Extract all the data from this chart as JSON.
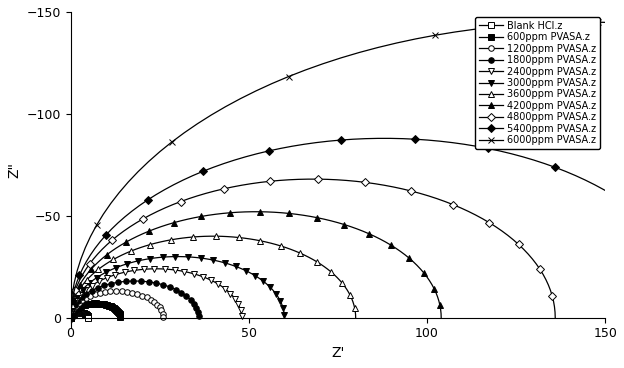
{
  "title": "",
  "xlabel": "Z'",
  "ylabel": "Z\"",
  "xlim": [
    0,
    150
  ],
  "ylim": [
    -150,
    5
  ],
  "yticks": [
    -150,
    -100,
    -50,
    0
  ],
  "xticks": [
    0,
    50,
    100,
    150
  ],
  "series": [
    {
      "label": "Blank HCl.z",
      "R": 2.5,
      "x0": 2.5,
      "marker": "s",
      "filled": false,
      "markersize": 4,
      "markevery": 2
    },
    {
      "label": "600ppm PVASA.z",
      "R": 7.0,
      "x0": 7.0,
      "marker": "s",
      "filled": true,
      "markersize": 4,
      "markevery": 2
    },
    {
      "label": "1200ppm PVASA.z",
      "R": 13.0,
      "x0": 13.0,
      "marker": "o",
      "filled": false,
      "markersize": 4,
      "markevery": 3
    },
    {
      "label": "1800ppm PVASA.z",
      "R": 18.0,
      "x0": 18.0,
      "marker": "o",
      "filled": true,
      "markersize": 4,
      "markevery": 3
    },
    {
      "label": "2400ppm PVASA.z",
      "R": 24.0,
      "x0": 24.0,
      "marker": "v",
      "filled": false,
      "markersize": 5,
      "markevery": 3
    },
    {
      "label": "3000ppm PVASA.z",
      "R": 30.0,
      "x0": 30.0,
      "marker": "v",
      "filled": true,
      "markersize": 5,
      "markevery": 3
    },
    {
      "label": "3600ppm PVASA.z",
      "R": 40.0,
      "x0": 40.0,
      "marker": "^",
      "filled": false,
      "markersize": 5,
      "markevery": 4
    },
    {
      "label": "4200ppm PVASA.z",
      "R": 52.0,
      "x0": 52.0,
      "marker": "^",
      "filled": true,
      "markersize": 5,
      "markevery": 4
    },
    {
      "label": "4800ppm PVASA.z",
      "R": 68.0,
      "x0": 68.0,
      "marker": "D",
      "filled": false,
      "markersize": 4,
      "markevery": 5
    },
    {
      "label": "5400ppm PVASA.z",
      "R": 88.0,
      "x0": 88.0,
      "marker": "D",
      "filled": true,
      "markersize": 4,
      "markevery": 6
    },
    {
      "label": "6000ppm PVASA.z",
      "R": 145.0,
      "x0": 145.0,
      "marker": "x",
      "filled": false,
      "markersize": 5,
      "markevery": 8
    }
  ],
  "npoints": 80,
  "linewidth": 0.9,
  "color": "black",
  "legend_fontsize": 7,
  "axis_fontsize": 10,
  "tick_fontsize": 9,
  "legend_loc": "upper right"
}
